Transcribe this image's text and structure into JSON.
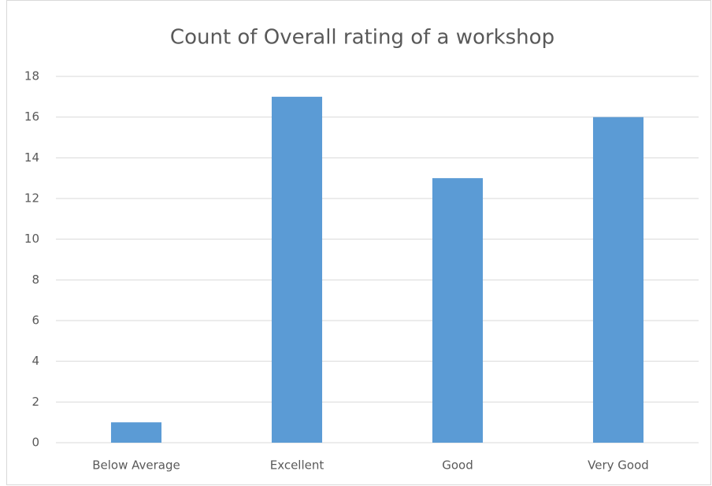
{
  "chart_data": {
    "type": "bar",
    "title": "Count of Overall rating of a workshop",
    "categories": [
      "Below Average",
      "Excellent",
      "Good",
      "Very Good"
    ],
    "values": [
      1,
      17,
      13,
      16
    ],
    "color": "#5b9bd5",
    "ylim": [
      0,
      18
    ],
    "yticks": [
      0,
      2,
      4,
      6,
      8,
      10,
      12,
      14,
      16,
      18
    ],
    "grid": true
  }
}
